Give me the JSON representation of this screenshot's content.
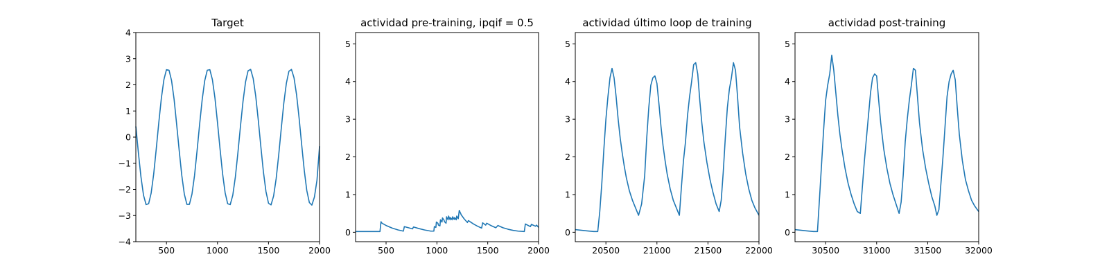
{
  "chart_data": [
    {
      "type": "line",
      "title": "Target",
      "xlim": [
        200,
        2000
      ],
      "ylim": [
        -4,
        4
      ],
      "xticks": [
        "500",
        "1000",
        "1500",
        "2000"
      ],
      "yticks": [
        "−4",
        "−3",
        "−2",
        "−1",
        "0",
        "1",
        "2",
        "3",
        "4"
      ],
      "series_color": "#1f77b4",
      "series": [
        {
          "x": [
            200,
            225,
            250,
            275,
            300,
            325,
            350,
            375,
            400,
            425,
            450,
            475,
            500,
            525,
            550,
            575,
            600,
            625,
            650,
            675,
            700,
            725,
            750,
            775,
            800,
            825,
            850,
            875,
            900,
            925,
            950,
            975,
            1000,
            1025,
            1050,
            1075,
            1100,
            1125,
            1150,
            1175,
            1200,
            1225,
            1250,
            1275,
            1300,
            1325,
            1350,
            1375,
            1400,
            1425,
            1450,
            1475,
            1500,
            1525,
            1550,
            1575,
            1600,
            1625,
            1650,
            1675,
            1700,
            1725,
            1750,
            1775,
            1800,
            1825,
            1850,
            1875,
            1900,
            1925,
            1950,
            1975,
            2000
          ],
          "y": [
            0.41,
            -0.6,
            -1.52,
            -2.22,
            -2.58,
            -2.55,
            -2.14,
            -1.41,
            -0.45,
            0.56,
            1.49,
            2.2,
            2.58,
            2.56,
            2.16,
            1.44,
            0.48,
            -0.52,
            -1.46,
            -2.18,
            -2.57,
            -2.57,
            -2.18,
            -1.47,
            -0.52,
            0.49,
            1.43,
            2.16,
            2.56,
            2.58,
            2.2,
            1.5,
            0.56,
            -0.45,
            -1.4,
            -2.13,
            -2.55,
            -2.58,
            -2.22,
            -1.53,
            -0.6,
            0.41,
            1.36,
            2.11,
            2.54,
            2.59,
            2.24,
            1.56,
            0.64,
            -0.37,
            -1.33,
            -2.08,
            -2.53,
            -2.59,
            -2.25,
            -1.59,
            -0.68,
            0.33,
            1.3,
            2.06,
            2.52,
            2.59,
            2.27,
            1.62,
            0.72,
            -0.29,
            -1.26,
            -2.04,
            -2.5,
            -2.6,
            -2.29,
            -1.65,
            -0.35
          ]
        }
      ]
    },
    {
      "type": "line",
      "title": "actividad pre-training, ipqif = 0.5",
      "xlim": [
        200,
        2000
      ],
      "ylim": [
        -0.25,
        5.3
      ],
      "xticks": [
        "500",
        "1000",
        "1500",
        "2000"
      ],
      "yticks": [
        "0",
        "1",
        "2",
        "3",
        "4",
        "5"
      ],
      "series_color": "#1f77b4",
      "series": [
        {
          "x": [
            200,
            440,
            450,
            460,
            500,
            560,
            620,
            670,
            680,
            720,
            760,
            770,
            820,
            880,
            940,
            970,
            975,
            990,
            995,
            1010,
            1015,
            1030,
            1035,
            1050,
            1055,
            1070,
            1075,
            1090,
            1095,
            1110,
            1115,
            1130,
            1135,
            1150,
            1155,
            1170,
            1175,
            1190,
            1195,
            1210,
            1220,
            1230,
            1240,
            1270,
            1300,
            1310,
            1360,
            1400,
            1440,
            1450,
            1480,
            1490,
            1530,
            1580,
            1600,
            1650,
            1700,
            1750,
            1800,
            1860,
            1870,
            1920,
            1930,
            1970,
            1980,
            2000
          ],
          "y": [
            0.02,
            0.02,
            0.28,
            0.24,
            0.18,
            0.11,
            0.06,
            0.03,
            0.15,
            0.12,
            0.09,
            0.14,
            0.1,
            0.06,
            0.03,
            0.03,
            0.15,
            0.13,
            0.27,
            0.24,
            0.19,
            0.17,
            0.33,
            0.27,
            0.38,
            0.32,
            0.28,
            0.24,
            0.41,
            0.33,
            0.43,
            0.33,
            0.39,
            0.33,
            0.41,
            0.34,
            0.39,
            0.33,
            0.43,
            0.36,
            0.58,
            0.52,
            0.46,
            0.35,
            0.26,
            0.31,
            0.22,
            0.16,
            0.11,
            0.25,
            0.19,
            0.24,
            0.18,
            0.12,
            0.18,
            0.12,
            0.08,
            0.05,
            0.03,
            0.02,
            0.22,
            0.15,
            0.21,
            0.16,
            0.19,
            0.13
          ]
        }
      ]
    },
    {
      "type": "line",
      "title": "actividad último loop de training",
      "xlim": [
        20200,
        22000
      ],
      "ylim": [
        -0.25,
        5.3
      ],
      "xticks": [
        "20500",
        "21000",
        "21500",
        "22000"
      ],
      "yticks": [
        "0",
        "1",
        "2",
        "3",
        "4",
        "5"
      ],
      "series_color": "#1f77b4",
      "series": [
        {
          "x": [
            20200,
            20300,
            20380,
            20420,
            20440,
            20460,
            20480,
            20500,
            20520,
            20540,
            20560,
            20580,
            20600,
            20620,
            20640,
            20660,
            20680,
            20700,
            20730,
            20760,
            20790,
            20820,
            20850,
            20880,
            20900,
            20920,
            20940,
            20960,
            20980,
            21000,
            21020,
            21040,
            21060,
            21080,
            21100,
            21130,
            21160,
            21190,
            21220,
            21240,
            21260,
            21280,
            21300,
            21320,
            21340,
            21360,
            21380,
            21400,
            21420,
            21440,
            21460,
            21490,
            21520,
            21550,
            21580,
            21610,
            21630,
            21650,
            21670,
            21690,
            21710,
            21730,
            21750,
            21770,
            21790,
            21810,
            21840,
            21870,
            21900,
            21930,
            21960,
            22000
          ],
          "y": [
            0.07,
            0.04,
            0.02,
            0.02,
            0.55,
            1.3,
            2.2,
            3.0,
            3.6,
            4.1,
            4.35,
            4.1,
            3.6,
            3.0,
            2.5,
            2.1,
            1.75,
            1.45,
            1.1,
            0.85,
            0.65,
            0.45,
            0.75,
            1.5,
            2.5,
            3.3,
            3.9,
            4.1,
            4.15,
            3.95,
            3.4,
            2.8,
            2.3,
            1.9,
            1.55,
            1.15,
            0.85,
            0.65,
            0.45,
            1.2,
            1.9,
            2.4,
            3.1,
            3.6,
            4.0,
            4.45,
            4.5,
            4.2,
            3.5,
            2.9,
            2.4,
            1.85,
            1.4,
            1.05,
            0.75,
            0.55,
            0.85,
            1.6,
            2.5,
            3.3,
            3.8,
            4.1,
            4.5,
            4.3,
            3.6,
            2.8,
            2.1,
            1.55,
            1.15,
            0.85,
            0.65,
            0.45
          ]
        }
      ]
    },
    {
      "type": "line",
      "title": "actividad post-training",
      "xlim": [
        30200,
        32000
      ],
      "ylim": [
        -0.25,
        5.3
      ],
      "xticks": [
        "30500",
        "31000",
        "31500",
        "32000"
      ],
      "yticks": [
        "0",
        "1",
        "2",
        "3",
        "4",
        "5"
      ],
      "series_color": "#1f77b4",
      "series": [
        {
          "x": [
            30200,
            30300,
            30380,
            30420,
            30440,
            30460,
            30480,
            30500,
            30520,
            30540,
            30560,
            30580,
            30600,
            30620,
            30640,
            30660,
            30690,
            30720,
            30750,
            30780,
            30810,
            30840,
            30860,
            30880,
            30900,
            30920,
            30940,
            30960,
            30980,
            31000,
            31020,
            31040,
            31070,
            31100,
            31130,
            31160,
            31190,
            31220,
            31240,
            31260,
            31280,
            31300,
            31320,
            31340,
            31360,
            31380,
            31400,
            31420,
            31450,
            31480,
            31510,
            31540,
            31570,
            31590,
            31610,
            31630,
            31650,
            31670,
            31690,
            31710,
            31730,
            31750,
            31770,
            31790,
            31810,
            31840,
            31870,
            31900,
            31930,
            31960,
            32000
          ],
          "y": [
            0.07,
            0.04,
            0.02,
            0.02,
            0.9,
            1.8,
            2.7,
            3.5,
            3.9,
            4.2,
            4.7,
            4.3,
            3.7,
            3.1,
            2.6,
            2.2,
            1.7,
            1.3,
            1.0,
            0.75,
            0.55,
            0.5,
            1.2,
            1.9,
            2.5,
            3.1,
            3.7,
            4.1,
            4.2,
            4.15,
            3.5,
            2.9,
            2.2,
            1.7,
            1.3,
            1.0,
            0.75,
            0.5,
            0.8,
            1.5,
            2.4,
            3.0,
            3.5,
            3.9,
            4.35,
            4.3,
            3.6,
            2.9,
            2.2,
            1.7,
            1.3,
            0.95,
            0.7,
            0.45,
            0.6,
            1.3,
            2.0,
            2.8,
            3.6,
            4.0,
            4.2,
            4.3,
            4.05,
            3.3,
            2.6,
            1.9,
            1.4,
            1.1,
            0.85,
            0.7,
            0.55
          ]
        }
      ]
    }
  ]
}
